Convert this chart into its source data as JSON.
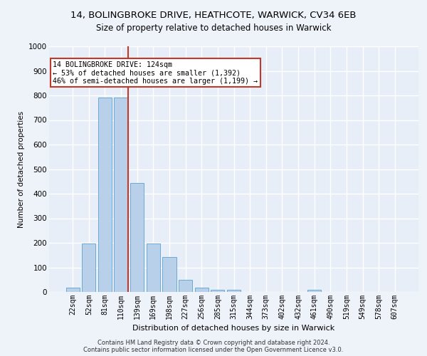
{
  "title1": "14, BOLINGBROKE DRIVE, HEATHCOTE, WARWICK, CV34 6EB",
  "title2": "Size of property relative to detached houses in Warwick",
  "xlabel": "Distribution of detached houses by size in Warwick",
  "ylabel": "Number of detached properties",
  "categories": [
    "22sqm",
    "52sqm",
    "81sqm",
    "110sqm",
    "139sqm",
    "169sqm",
    "198sqm",
    "227sqm",
    "256sqm",
    "285sqm",
    "315sqm",
    "344sqm",
    "373sqm",
    "402sqm",
    "432sqm",
    "461sqm",
    "490sqm",
    "519sqm",
    "549sqm",
    "578sqm",
    "607sqm"
  ],
  "values": [
    18,
    197,
    790,
    790,
    443,
    197,
    143,
    50,
    17,
    10,
    10,
    0,
    0,
    0,
    0,
    10,
    0,
    0,
    0,
    0,
    0
  ],
  "bar_color": "#b8d0ea",
  "bar_edge_color": "#6aaad4",
  "vline_color": "#c0392b",
  "annotation_text": "14 BOLINGBROKE DRIVE: 124sqm\n← 53% of detached houses are smaller (1,392)\n46% of semi-detached houses are larger (1,199) →",
  "annotation_box_color": "#ffffff",
  "annotation_box_edge": "#c0392b",
  "ylim": [
    0,
    1000
  ],
  "yticks": [
    0,
    100,
    200,
    300,
    400,
    500,
    600,
    700,
    800,
    900,
    1000
  ],
  "footer1": "Contains HM Land Registry data © Crown copyright and database right 2024.",
  "footer2": "Contains public sector information licensed under the Open Government Licence v3.0.",
  "bg_color": "#eef2f9",
  "plot_bg_color": "#e8eef8",
  "grid_color": "#ffffff",
  "title1_fontsize": 9.5,
  "title2_fontsize": 8.5,
  "title1_fontweight": "normal"
}
